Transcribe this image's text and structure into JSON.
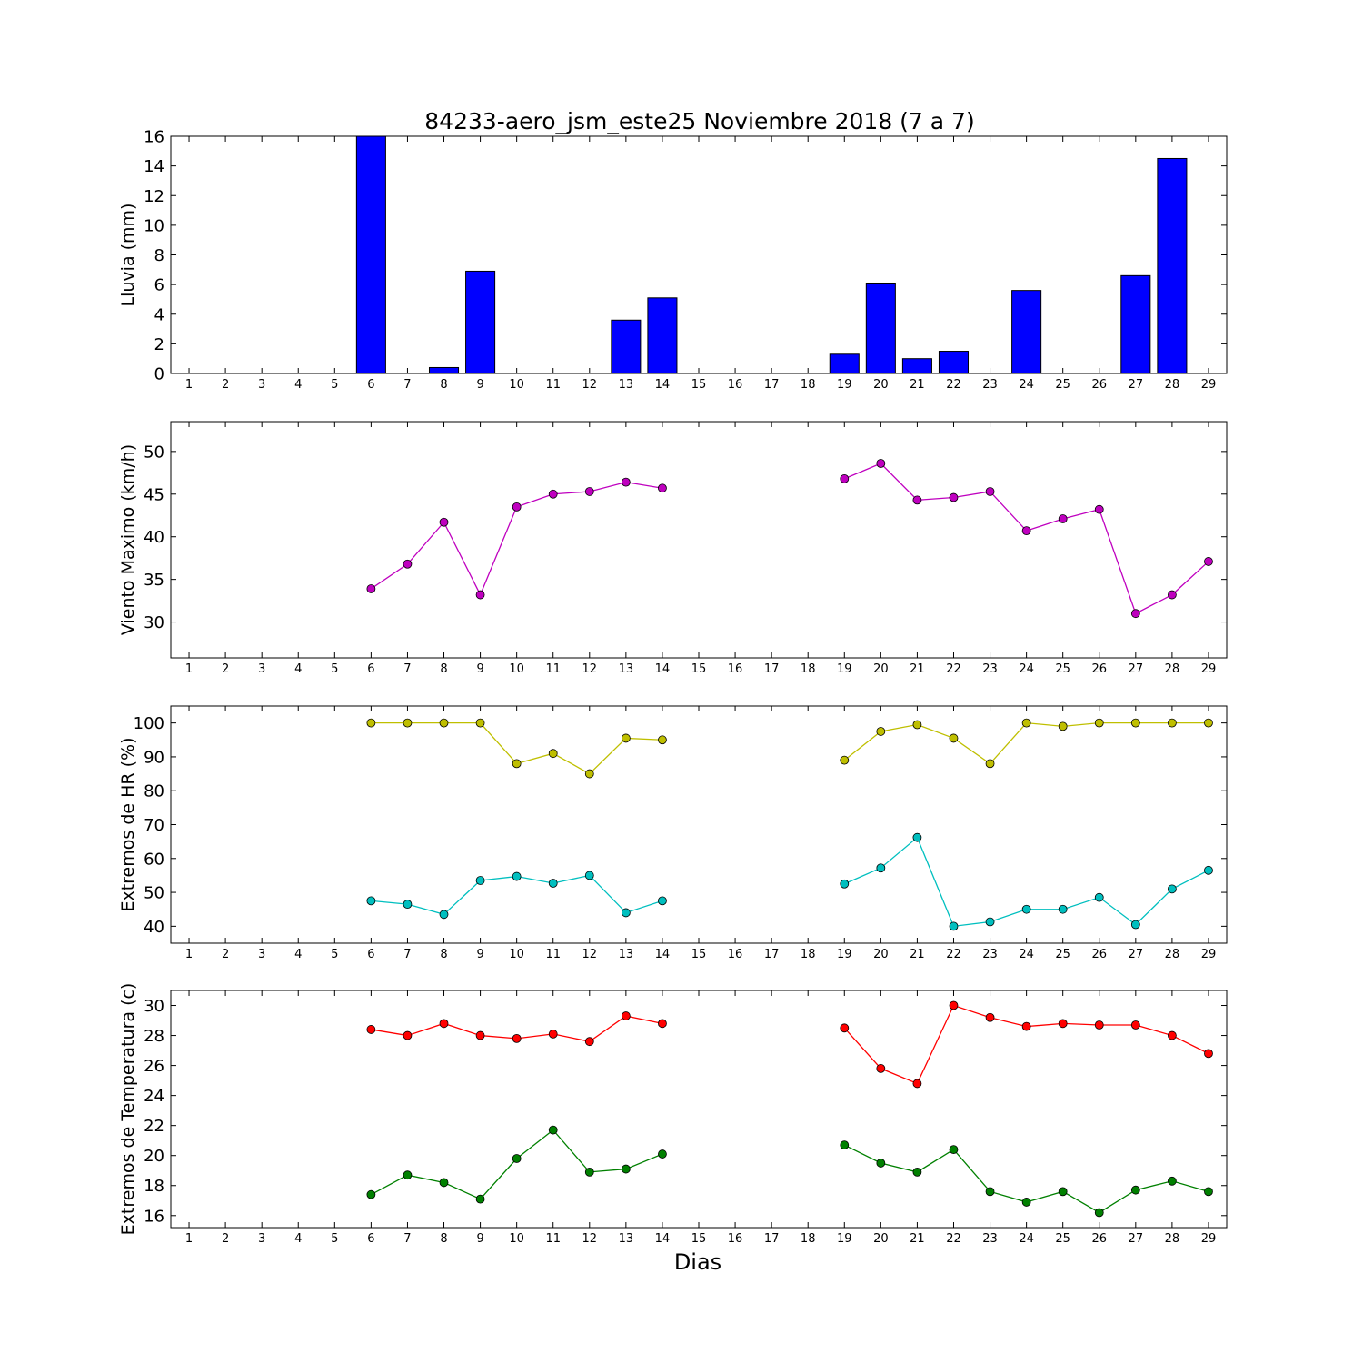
{
  "title": "84233-aero_jsm_este25 Noviembre 2018  (7 a 7)",
  "xlabel": "Dias",
  "chart_data": [
    {
      "type": "bar",
      "ylabel": "Lluvia (mm)",
      "ylim": [
        0,
        16
      ],
      "yticks": [
        0,
        2,
        4,
        6,
        8,
        10,
        12,
        14,
        16
      ],
      "x": [
        1,
        2,
        3,
        4,
        5,
        6,
        7,
        8,
        9,
        10,
        11,
        12,
        13,
        14,
        15,
        16,
        17,
        18,
        19,
        20,
        21,
        22,
        23,
        24,
        25,
        26,
        27,
        28,
        29
      ],
      "xlim": [
        0.5,
        29.5
      ],
      "series": [
        {
          "color": "#0000ff",
          "values": [
            0,
            0,
            0,
            0,
            0,
            16.0,
            0,
            0.4,
            6.9,
            0,
            0,
            0,
            3.6,
            5.1,
            0,
            0,
            0,
            0,
            1.3,
            6.1,
            1.0,
            1.5,
            0,
            5.6,
            0,
            0,
            6.6,
            14.5,
            0
          ]
        }
      ]
    },
    {
      "type": "line",
      "ylabel": "Viento Maximo (km/h)",
      "ylim": [
        25.8,
        53.5
      ],
      "yticks": [
        30,
        35,
        40,
        45,
        50
      ],
      "x": [
        1,
        2,
        3,
        4,
        5,
        6,
        7,
        8,
        9,
        10,
        11,
        12,
        13,
        14,
        15,
        16,
        17,
        18,
        19,
        20,
        21,
        22,
        23,
        24,
        25,
        26,
        27,
        28,
        29
      ],
      "xlim": [
        0.5,
        29.5
      ],
      "series": [
        {
          "color": "#bf00bf",
          "values": [
            null,
            null,
            null,
            null,
            null,
            33.9,
            36.8,
            41.7,
            33.2,
            43.5,
            45.0,
            45.3,
            46.4,
            45.7,
            null,
            null,
            null,
            null,
            46.8,
            48.6,
            44.3,
            44.6,
            45.3,
            40.7,
            42.1,
            43.2,
            31.0,
            33.2,
            37.1
          ]
        }
      ]
    },
    {
      "type": "line",
      "ylabel": "Extremos de HR (%)",
      "ylim": [
        35,
        105
      ],
      "yticks": [
        40,
        50,
        60,
        70,
        80,
        90,
        100
      ],
      "x": [
        1,
        2,
        3,
        4,
        5,
        6,
        7,
        8,
        9,
        10,
        11,
        12,
        13,
        14,
        15,
        16,
        17,
        18,
        19,
        20,
        21,
        22,
        23,
        24,
        25,
        26,
        27,
        28,
        29
      ],
      "xlim": [
        0.5,
        29.5
      ],
      "series": [
        {
          "color": "#bfbf00",
          "values": [
            null,
            null,
            null,
            null,
            null,
            100,
            100,
            100,
            100,
            88,
            91,
            85,
            95.5,
            95,
            null,
            null,
            null,
            null,
            89,
            97.5,
            99.5,
            95.5,
            88,
            100,
            99,
            100,
            100,
            100,
            100
          ]
        },
        {
          "color": "#00bfbf",
          "values": [
            null,
            null,
            null,
            null,
            null,
            47.5,
            46.5,
            43.5,
            53.5,
            54.7,
            52.7,
            55,
            44,
            47.5,
            null,
            null,
            null,
            null,
            52.5,
            57.2,
            66.2,
            40,
            41.3,
            45,
            45,
            48.5,
            40.5,
            51,
            56.5
          ]
        }
      ]
    },
    {
      "type": "line",
      "ylabel": "Extremos de Temperatura (c)",
      "ylim": [
        15.2,
        31
      ],
      "yticks": [
        16,
        18,
        20,
        22,
        24,
        26,
        28,
        30
      ],
      "x": [
        1,
        2,
        3,
        4,
        5,
        6,
        7,
        8,
        9,
        10,
        11,
        12,
        13,
        14,
        15,
        16,
        17,
        18,
        19,
        20,
        21,
        22,
        23,
        24,
        25,
        26,
        27,
        28,
        29
      ],
      "xlim": [
        0.5,
        29.5
      ],
      "series": [
        {
          "color": "#ff0000",
          "values": [
            null,
            null,
            null,
            null,
            null,
            28.4,
            28.0,
            28.8,
            28.0,
            27.8,
            28.1,
            27.6,
            29.3,
            28.8,
            null,
            null,
            null,
            null,
            28.5,
            25.8,
            24.8,
            30.0,
            29.2,
            28.6,
            28.8,
            28.7,
            28.7,
            28.0,
            26.8
          ]
        },
        {
          "color": "#008000",
          "values": [
            null,
            null,
            null,
            null,
            null,
            17.4,
            18.7,
            18.2,
            17.1,
            19.8,
            21.7,
            18.9,
            19.1,
            20.1,
            null,
            null,
            null,
            null,
            20.7,
            19.5,
            18.9,
            20.4,
            17.6,
            16.9,
            17.6,
            16.2,
            17.7,
            18.3,
            17.6
          ]
        }
      ]
    }
  ]
}
